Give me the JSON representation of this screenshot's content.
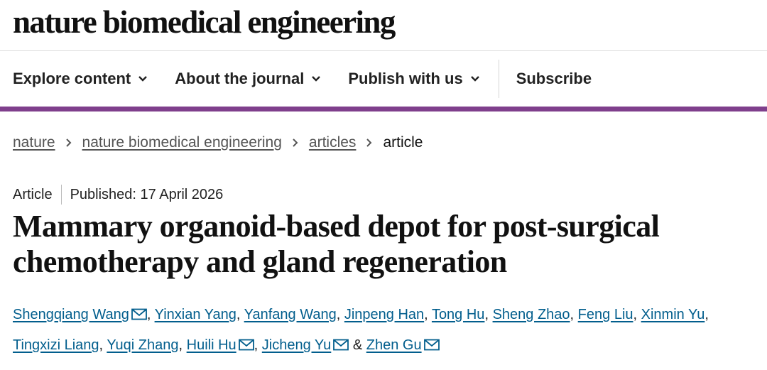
{
  "header": {
    "logo": "nature biomedical engineering"
  },
  "nav": {
    "items": [
      "Explore content",
      "About the journal",
      "Publish with us"
    ],
    "subscribe": "Subscribe"
  },
  "breadcrumbs": [
    "nature",
    "nature biomedical engineering",
    "articles",
    "article"
  ],
  "article": {
    "type": "Article",
    "published": "Published: 17 April 2026",
    "title": "Mammary organoid-based depot for post-surgical chemotherapy and gland regeneration",
    "separator": ",",
    "conjunction": "&",
    "authors": [
      {
        "name": "Shengqiang Wang",
        "email": true
      },
      {
        "name": "Yinxian Yang",
        "email": false
      },
      {
        "name": "Yanfang Wang",
        "email": false
      },
      {
        "name": "Jinpeng Han",
        "email": false
      },
      {
        "name": "Tong Hu",
        "email": false
      },
      {
        "name": "Sheng Zhao",
        "email": false
      },
      {
        "name": "Feng Liu",
        "email": false
      },
      {
        "name": "Xinmin Yu",
        "email": false
      },
      {
        "name": "Tingxizi Liang",
        "email": false
      },
      {
        "name": "Yuqi Zhang",
        "email": false
      },
      {
        "name": "Huili Hu",
        "email": true
      },
      {
        "name": "Jicheng Yu",
        "email": true
      },
      {
        "name": "Zhen Gu",
        "email": true
      }
    ]
  }
}
